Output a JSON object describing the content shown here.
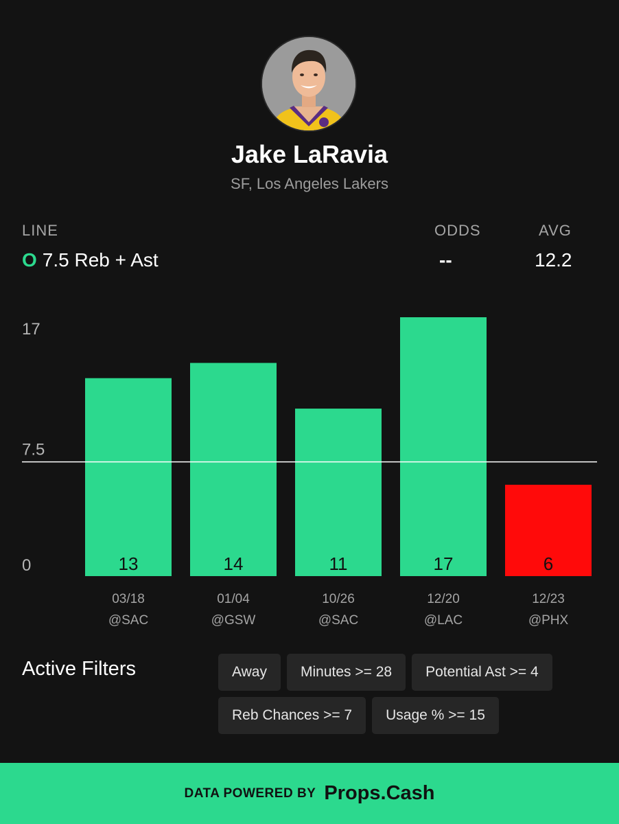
{
  "player": {
    "name": "Jake LaRavia",
    "team": "SF, Los Angeles Lakers"
  },
  "stats": {
    "line_label": "LINE",
    "line_side": "O",
    "line_text": "7.5 Reb + Ast",
    "odds_label": "ODDS",
    "odds_value": "--",
    "avg_label": "AVG",
    "avg_value": "12.2"
  },
  "colors": {
    "accent": "#2cd98e",
    "over": "#2cd98e",
    "under": "#ff0a0a",
    "background": "#131313"
  },
  "chart_data": {
    "type": "bar",
    "categories": [
      "03/18",
      "01/04",
      "10/26",
      "12/20",
      "12/23"
    ],
    "opponents": [
      "@SAC",
      "@GSW",
      "@SAC",
      "@LAC",
      "@PHX"
    ],
    "values": [
      13,
      14,
      11,
      17,
      6
    ],
    "line": 7.5,
    "ylim": [
      0,
      17
    ],
    "yticks": [
      "0",
      "7.5",
      "17"
    ]
  },
  "filters": {
    "title": "Active Filters",
    "chips": [
      "Away",
      "Minutes >= 28",
      "Potential Ast >= 4",
      "Reb Chances >= 7",
      "Usage % >= 15"
    ]
  },
  "footer": {
    "prefix": "DATA POWERED BY",
    "brand": "Props.Cash"
  }
}
